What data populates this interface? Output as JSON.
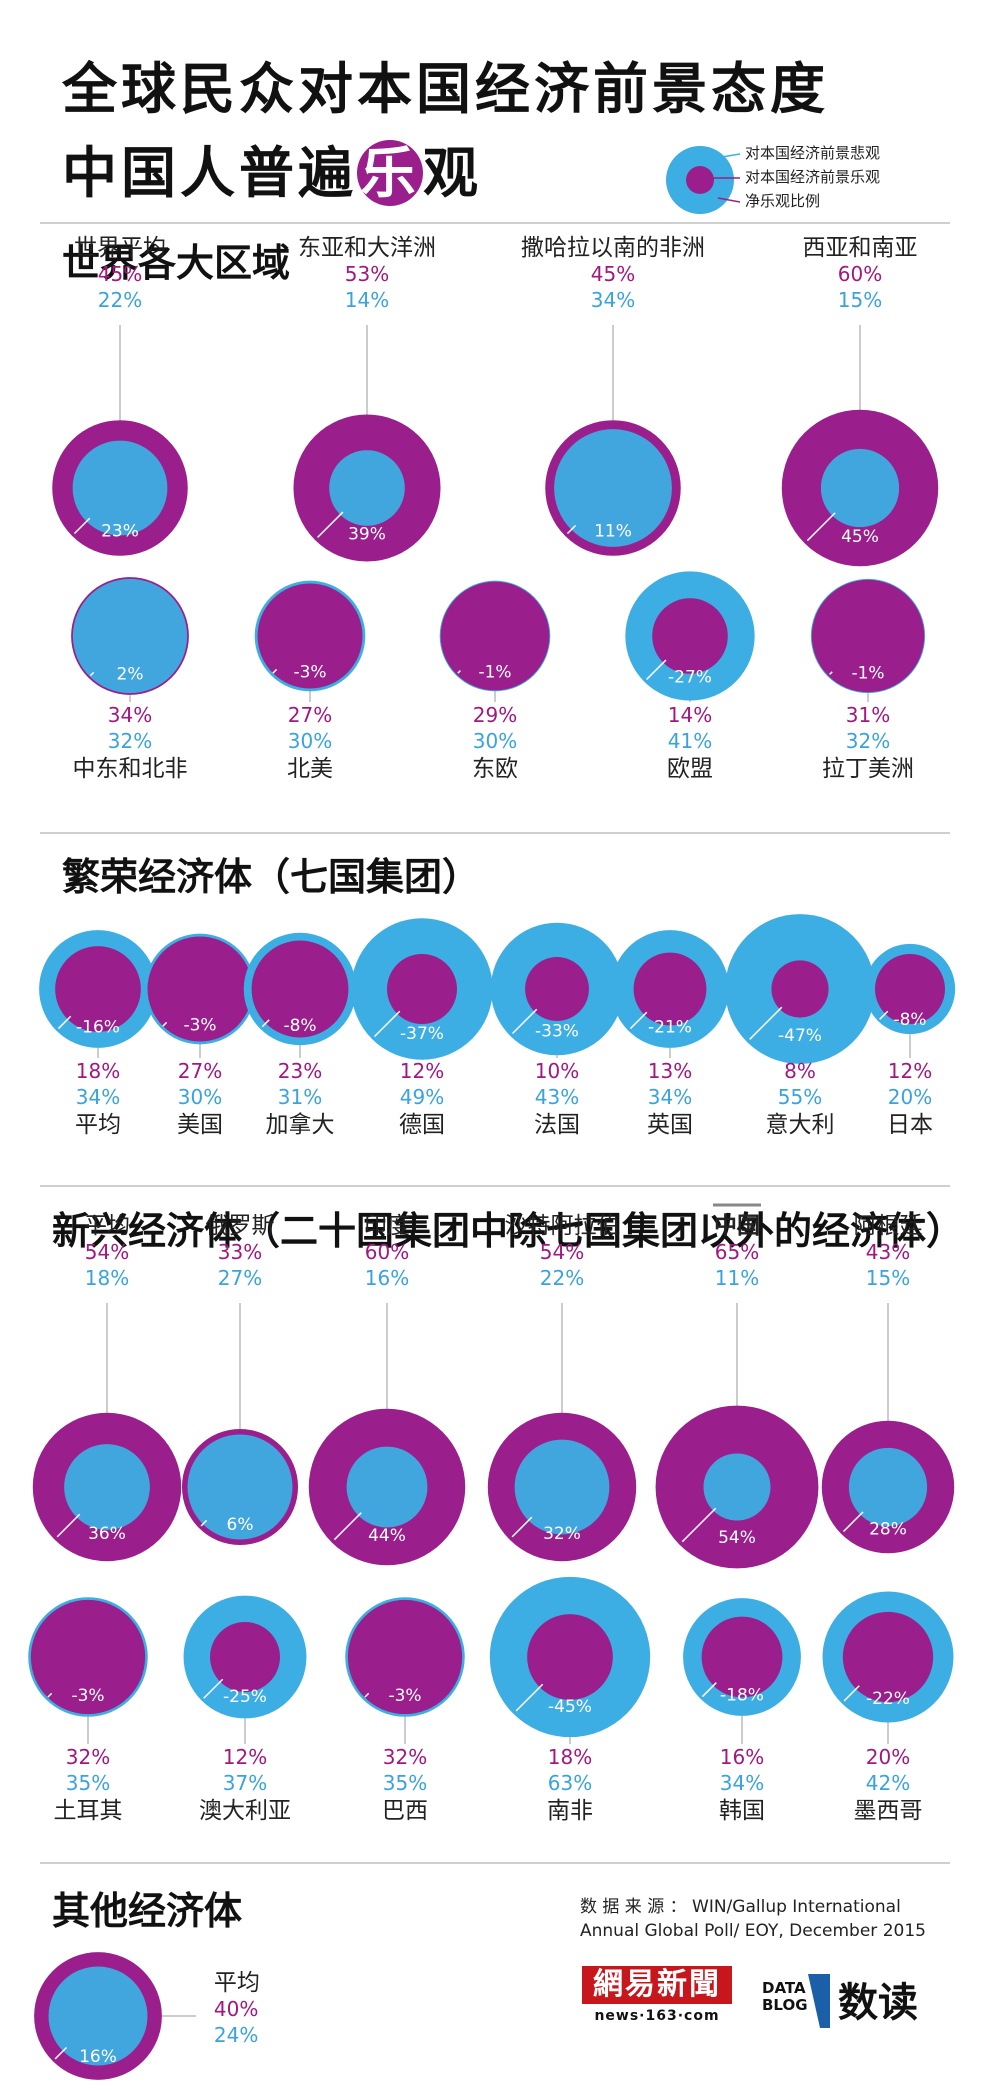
{
  "header": {
    "title_line1": "全球民众对本国经济前景态度",
    "title_line2_prefix": "中国人普遍",
    "title_line2_highlight": "乐",
    "title_line2_suffix": "观"
  },
  "legend": {
    "pessimistic": "对本国经济前景悲观",
    "optimistic": "对本国经济前景乐观",
    "net": "净乐观比例"
  },
  "colors": {
    "optimistic": "#9a1f8c",
    "pessimistic": "#3daee3",
    "net_label": "#ffffff",
    "pess_text": "#3aa3dd",
    "opt_text": "#a3177f"
  },
  "sections": {
    "regions": "世界各大区域",
    "g7": "繁荣经济体（七国集团）",
    "emerging": "新兴经济体（二十国集团中除七国集团以外的经济体）",
    "others": "其他经济体"
  },
  "source": {
    "line1": "数 据 来 源 ：   WIN/Gallup International",
    "line2": "Annual Global Poll/ EOY, December 2015"
  },
  "logos": {
    "netease": "網易新聞",
    "netease_url": "news·163·com",
    "datablog_1": "DATA",
    "datablog_2": "BLOG",
    "shudu": "数读"
  },
  "chart_data": {
    "type": "bubble",
    "groups": [
      {
        "group": "世界各大区域",
        "items": [
          {
            "name": "世界平均",
            "optimistic": 45,
            "pessimistic": 22,
            "net": 23
          },
          {
            "name": "东亚和大洋洲",
            "optimistic": 53,
            "pessimistic": 14,
            "net": 39
          },
          {
            "name": "撒哈拉以南的非洲",
            "optimistic": 45,
            "pessimistic": 34,
            "net": 11
          },
          {
            "name": "西亚和南亚",
            "optimistic": 60,
            "pessimistic": 15,
            "net": 45
          },
          {
            "name": "中东和北非",
            "optimistic": 34,
            "pessimistic": 32,
            "net": 2
          },
          {
            "name": "北美",
            "optimistic": 27,
            "pessimistic": 30,
            "net": -3
          },
          {
            "name": "东欧",
            "optimistic": 29,
            "pessimistic": 30,
            "net": -1
          },
          {
            "name": "欧盟",
            "optimistic": 14,
            "pessimistic": 41,
            "net": -27
          },
          {
            "name": "拉丁美洲",
            "optimistic": 31,
            "pessimistic": 32,
            "net": -1
          }
        ]
      },
      {
        "group": "繁荣经济体（七国集团）",
        "items": [
          {
            "name": "平均",
            "optimistic": 18,
            "pessimistic": 34,
            "net": -16
          },
          {
            "name": "美国",
            "optimistic": 27,
            "pessimistic": 30,
            "net": -3
          },
          {
            "name": "加拿大",
            "optimistic": 23,
            "pessimistic": 31,
            "net": -8
          },
          {
            "name": "德国",
            "optimistic": 12,
            "pessimistic": 49,
            "net": -37
          },
          {
            "name": "法国",
            "optimistic": 10,
            "pessimistic": 43,
            "net": -33
          },
          {
            "name": "英国",
            "optimistic": 13,
            "pessimistic": 34,
            "net": -21
          },
          {
            "name": "意大利",
            "optimistic": 8,
            "pessimistic": 55,
            "net": -47
          },
          {
            "name": "日本",
            "optimistic": 12,
            "pessimistic": 20,
            "net": -8
          }
        ]
      },
      {
        "group": "新兴经济体（二十国集团中除七国集团以外的经济体）",
        "items": [
          {
            "name": "平均",
            "optimistic": 54,
            "pessimistic": 18,
            "net": 36
          },
          {
            "name": "俄罗斯",
            "optimistic": 33,
            "pessimistic": 27,
            "net": 6
          },
          {
            "name": "印度",
            "optimistic": 60,
            "pessimistic": 16,
            "net": 44
          },
          {
            "name": "沙特阿拉伯",
            "optimistic": 54,
            "pessimistic": 22,
            "net": 32
          },
          {
            "name": "中国",
            "optimistic": 65,
            "pessimistic": 11,
            "net": 54
          },
          {
            "name": "阿根廷",
            "optimistic": 43,
            "pessimistic": 15,
            "net": 28
          },
          {
            "name": "土耳其",
            "optimistic": 32,
            "pessimistic": 35,
            "net": -3
          },
          {
            "name": "澳大利亚",
            "optimistic": 12,
            "pessimistic": 37,
            "net": -25
          },
          {
            "name": "巴西",
            "optimistic": 32,
            "pessimistic": 35,
            "net": -3
          },
          {
            "name": "南非",
            "optimistic": 18,
            "pessimistic": 63,
            "net": -45
          },
          {
            "name": "韩国",
            "optimistic": 16,
            "pessimistic": 34,
            "net": -18
          },
          {
            "name": "墨西哥",
            "optimistic": 20,
            "pessimistic": 42,
            "net": -22
          }
        ]
      },
      {
        "group": "其他经济体",
        "items": [
          {
            "name": "平均",
            "optimistic": 40,
            "pessimistic": 24,
            "net": 16
          }
        ]
      }
    ]
  }
}
